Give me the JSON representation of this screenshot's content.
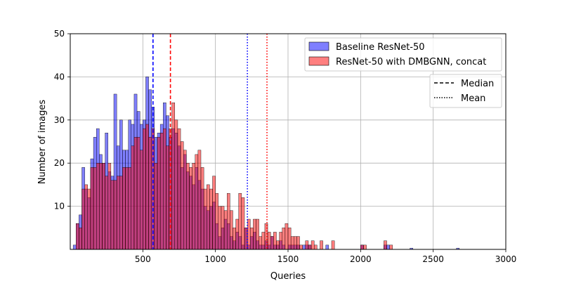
{
  "chart_data": {
    "type": "histogram",
    "xlabel": "Queries",
    "ylabel": "Number of images",
    "xlim": [
      0,
      3000
    ],
    "ylim": [
      0,
      50
    ],
    "x_ticks": [
      "500",
      "1000",
      "1500",
      "2000",
      "2500",
      "3000"
    ],
    "y_ticks": [
      "10",
      "20",
      "30",
      "40",
      "50"
    ],
    "grid": true,
    "bin_width": 20,
    "series": [
      {
        "name": "Baseline ResNet-50",
        "color": "#0000ff",
        "bins": [
          {
            "x": 20,
            "count": 1
          },
          {
            "x": 40,
            "count": 6
          },
          {
            "x": 60,
            "count": 8
          },
          {
            "x": 80,
            "count": 19
          },
          {
            "x": 100,
            "count": 14
          },
          {
            "x": 120,
            "count": 12
          },
          {
            "x": 140,
            "count": 21
          },
          {
            "x": 160,
            "count": 26
          },
          {
            "x": 180,
            "count": 28
          },
          {
            "x": 200,
            "count": 22
          },
          {
            "x": 220,
            "count": 20
          },
          {
            "x": 240,
            "count": 27
          },
          {
            "x": 260,
            "count": 18
          },
          {
            "x": 280,
            "count": 17
          },
          {
            "x": 300,
            "count": 36
          },
          {
            "x": 320,
            "count": 24
          },
          {
            "x": 340,
            "count": 30
          },
          {
            "x": 360,
            "count": 23
          },
          {
            "x": 380,
            "count": 23
          },
          {
            "x": 400,
            "count": 30
          },
          {
            "x": 420,
            "count": 29
          },
          {
            "x": 440,
            "count": 36
          },
          {
            "x": 460,
            "count": 32
          },
          {
            "x": 480,
            "count": 29
          },
          {
            "x": 500,
            "count": 30
          },
          {
            "x": 520,
            "count": 40
          },
          {
            "x": 540,
            "count": 37
          },
          {
            "x": 560,
            "count": 33
          },
          {
            "x": 580,
            "count": 26
          },
          {
            "x": 600,
            "count": 27
          },
          {
            "x": 620,
            "count": 29
          },
          {
            "x": 640,
            "count": 34
          },
          {
            "x": 660,
            "count": 31
          },
          {
            "x": 680,
            "count": 26
          },
          {
            "x": 700,
            "count": 28
          },
          {
            "x": 720,
            "count": 27
          },
          {
            "x": 740,
            "count": 24
          },
          {
            "x": 760,
            "count": 19
          },
          {
            "x": 780,
            "count": 22
          },
          {
            "x": 800,
            "count": 18
          },
          {
            "x": 820,
            "count": 17
          },
          {
            "x": 840,
            "count": 15
          },
          {
            "x": 860,
            "count": 19
          },
          {
            "x": 880,
            "count": 16
          },
          {
            "x": 900,
            "count": 14
          },
          {
            "x": 920,
            "count": 10
          },
          {
            "x": 940,
            "count": 9
          },
          {
            "x": 960,
            "count": 10
          },
          {
            "x": 980,
            "count": 11
          },
          {
            "x": 1000,
            "count": 6
          },
          {
            "x": 1020,
            "count": 3
          },
          {
            "x": 1040,
            "count": 5
          },
          {
            "x": 1060,
            "count": 7
          },
          {
            "x": 1080,
            "count": 6
          },
          {
            "x": 1100,
            "count": 3
          },
          {
            "x": 1120,
            "count": 2
          },
          {
            "x": 1140,
            "count": 4
          },
          {
            "x": 1160,
            "count": 3
          },
          {
            "x": 1180,
            "count": 1
          },
          {
            "x": 1200,
            "count": 5
          },
          {
            "x": 1220,
            "count": 1
          },
          {
            "x": 1240,
            "count": 3
          },
          {
            "x": 1260,
            "count": 4
          },
          {
            "x": 1280,
            "count": 2
          },
          {
            "x": 1300,
            "count": 1
          },
          {
            "x": 1320,
            "count": 1
          },
          {
            "x": 1340,
            "count": 2
          },
          {
            "x": 1360,
            "count": 1
          },
          {
            "x": 1380,
            "count": 3
          },
          {
            "x": 1400,
            "count": 1
          },
          {
            "x": 1420,
            "count": 1
          },
          {
            "x": 1440,
            "count": 2
          },
          {
            "x": 1460,
            "count": 1
          },
          {
            "x": 1500,
            "count": 1
          },
          {
            "x": 1520,
            "count": 1
          },
          {
            "x": 1540,
            "count": 1
          },
          {
            "x": 1560,
            "count": 1
          },
          {
            "x": 1600,
            "count": 1
          },
          {
            "x": 1620,
            "count": 1
          },
          {
            "x": 1640,
            "count": 1
          },
          {
            "x": 1760,
            "count": 1
          },
          {
            "x": 2000,
            "count": 1
          },
          {
            "x": 2160,
            "count": 1
          },
          {
            "x": 2180,
            "count": 1
          },
          {
            "x": 2340,
            "count": 0.3
          },
          {
            "x": 2660,
            "count": 0.3
          }
        ]
      },
      {
        "name": "ResNet-50 with DMBGNN, concat",
        "color": "#ff0000",
        "bins": [
          {
            "x": 40,
            "count": 6
          },
          {
            "x": 60,
            "count": 5
          },
          {
            "x": 80,
            "count": 14
          },
          {
            "x": 100,
            "count": 15
          },
          {
            "x": 120,
            "count": 14
          },
          {
            "x": 140,
            "count": 19
          },
          {
            "x": 160,
            "count": 19
          },
          {
            "x": 180,
            "count": 20
          },
          {
            "x": 200,
            "count": 20
          },
          {
            "x": 220,
            "count": 20
          },
          {
            "x": 240,
            "count": 17
          },
          {
            "x": 260,
            "count": 20
          },
          {
            "x": 280,
            "count": 16
          },
          {
            "x": 300,
            "count": 16
          },
          {
            "x": 320,
            "count": 17
          },
          {
            "x": 340,
            "count": 17
          },
          {
            "x": 360,
            "count": 19
          },
          {
            "x": 380,
            "count": 19
          },
          {
            "x": 400,
            "count": 19
          },
          {
            "x": 420,
            "count": 24
          },
          {
            "x": 440,
            "count": 26
          },
          {
            "x": 460,
            "count": 26
          },
          {
            "x": 480,
            "count": 23
          },
          {
            "x": 500,
            "count": 28
          },
          {
            "x": 520,
            "count": 29
          },
          {
            "x": 540,
            "count": 26
          },
          {
            "x": 560,
            "count": 28
          },
          {
            "x": 580,
            "count": 20
          },
          {
            "x": 600,
            "count": 26
          },
          {
            "x": 620,
            "count": 27
          },
          {
            "x": 640,
            "count": 28
          },
          {
            "x": 660,
            "count": 24
          },
          {
            "x": 680,
            "count": 28
          },
          {
            "x": 700,
            "count": 34
          },
          {
            "x": 720,
            "count": 30
          },
          {
            "x": 740,
            "count": 28
          },
          {
            "x": 760,
            "count": 25
          },
          {
            "x": 780,
            "count": 23
          },
          {
            "x": 800,
            "count": 20
          },
          {
            "x": 820,
            "count": 19
          },
          {
            "x": 840,
            "count": 20
          },
          {
            "x": 860,
            "count": 22
          },
          {
            "x": 880,
            "count": 23
          },
          {
            "x": 900,
            "count": 19
          },
          {
            "x": 920,
            "count": 14
          },
          {
            "x": 940,
            "count": 15
          },
          {
            "x": 960,
            "count": 14
          },
          {
            "x": 980,
            "count": 17
          },
          {
            "x": 1000,
            "count": 13
          },
          {
            "x": 1020,
            "count": 10
          },
          {
            "x": 1040,
            "count": 10
          },
          {
            "x": 1060,
            "count": 9
          },
          {
            "x": 1080,
            "count": 13
          },
          {
            "x": 1100,
            "count": 9
          },
          {
            "x": 1120,
            "count": 5
          },
          {
            "x": 1140,
            "count": 7
          },
          {
            "x": 1160,
            "count": 13
          },
          {
            "x": 1180,
            "count": 12
          },
          {
            "x": 1200,
            "count": 5
          },
          {
            "x": 1220,
            "count": 7
          },
          {
            "x": 1240,
            "count": 5
          },
          {
            "x": 1260,
            "count": 7
          },
          {
            "x": 1280,
            "count": 7
          },
          {
            "x": 1300,
            "count": 3
          },
          {
            "x": 1320,
            "count": 4
          },
          {
            "x": 1340,
            "count": 6
          },
          {
            "x": 1360,
            "count": 4
          },
          {
            "x": 1380,
            "count": 3
          },
          {
            "x": 1400,
            "count": 4
          },
          {
            "x": 1420,
            "count": 2
          },
          {
            "x": 1440,
            "count": 4
          },
          {
            "x": 1460,
            "count": 5
          },
          {
            "x": 1480,
            "count": 6
          },
          {
            "x": 1500,
            "count": 5
          },
          {
            "x": 1520,
            "count": 3
          },
          {
            "x": 1540,
            "count": 3
          },
          {
            "x": 1560,
            "count": 3
          },
          {
            "x": 1580,
            "count": 1
          },
          {
            "x": 1620,
            "count": 2
          },
          {
            "x": 1640,
            "count": 1
          },
          {
            "x": 1660,
            "count": 2
          },
          {
            "x": 1680,
            "count": 1
          },
          {
            "x": 1720,
            "count": 2
          },
          {
            "x": 1800,
            "count": 2
          },
          {
            "x": 2000,
            "count": 1
          },
          {
            "x": 2020,
            "count": 1
          },
          {
            "x": 2160,
            "count": 2
          },
          {
            "x": 2200,
            "count": 1
          }
        ]
      }
    ],
    "reference_lines": [
      {
        "series": "Baseline ResNet-50",
        "stat": "Median",
        "x": 570,
        "color": "#0000ff",
        "style": "dashed"
      },
      {
        "series": "ResNet-50 with DMBGNN, concat",
        "stat": "Median",
        "x": 690,
        "color": "#ff0000",
        "style": "dashed"
      },
      {
        "series": "Baseline ResNet-50",
        "stat": "Mean",
        "x": 1220,
        "color": "#0000ff",
        "style": "dotted"
      },
      {
        "series": "ResNet-50 with DMBGNN, concat",
        "stat": "Mean",
        "x": 1355,
        "color": "#ff0000",
        "style": "dotted"
      }
    ],
    "legend_placement": "top-right",
    "line_legend": [
      "Median",
      "Mean"
    ]
  }
}
